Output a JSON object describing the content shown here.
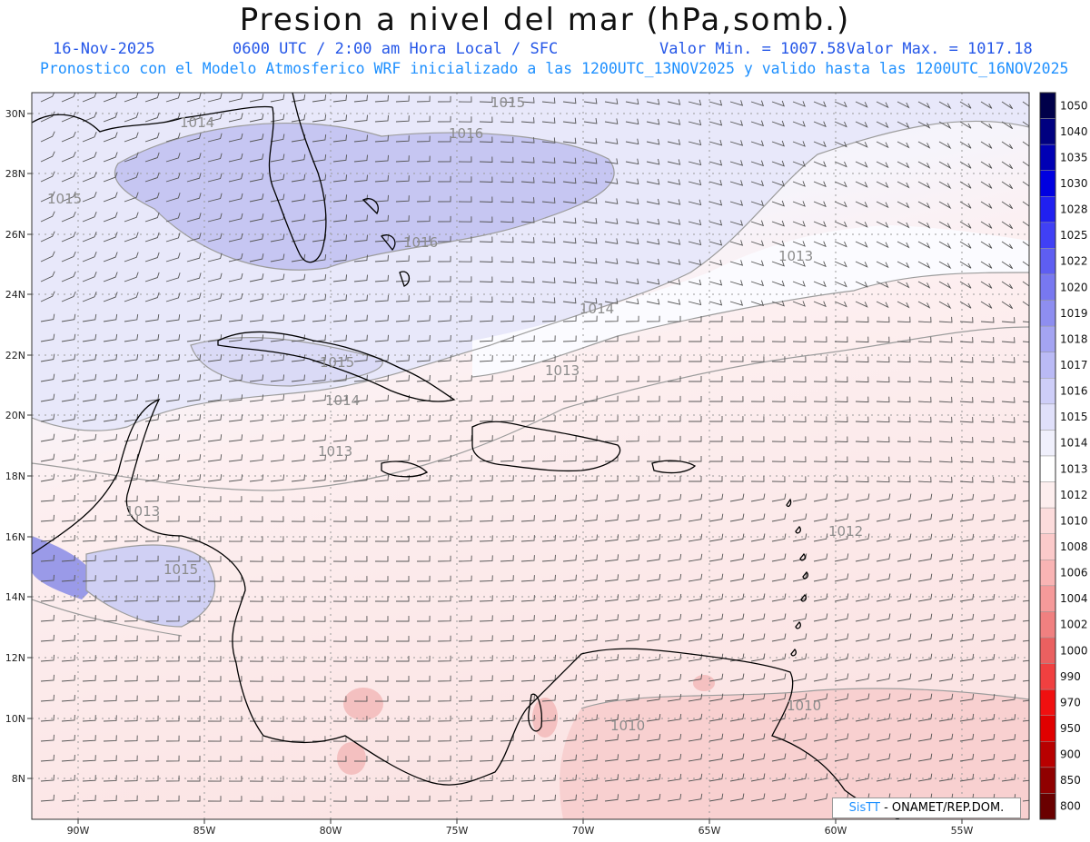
{
  "header": {
    "title": "Presion a nivel del mar (hPa,somb.)",
    "date": "16-Nov-2025",
    "time": "0600 UTC / 2:00 am Hora Local / SFC",
    "min": "Valor Min. = 1007.58",
    "max": "Valor Max. = 1017.18",
    "model_line": "Pronostico con el Modelo Atmosferico WRF inicializado a las 1200UTC_13NOV2025 y valido hasta las  1200UTC_16NOV2025"
  },
  "axes": {
    "lon_labels": [
      "90W",
      "85W",
      "80W",
      "75W",
      "70W",
      "65W",
      "60W",
      "55W"
    ],
    "lat_labels": [
      "30N",
      "28N",
      "26N",
      "24N",
      "22N",
      "20N",
      "18N",
      "16N",
      "14N",
      "12N",
      "10N",
      "8N"
    ]
  },
  "colorbar": {
    "labels": [
      "1050",
      "1040",
      "1035",
      "1030",
      "1028",
      "1025",
      "1022",
      "1020",
      "1019",
      "1018",
      "1017",
      "1016",
      "1015",
      "1014",
      "1013",
      "1012",
      "1010",
      "1008",
      "1006",
      "1004",
      "1002",
      "1000",
      "990",
      "970",
      "950",
      "900",
      "850",
      "800"
    ],
    "colors": [
      "#00004a",
      "#000080",
      "#0000b4",
      "#0000e0",
      "#2020f0",
      "#4040f5",
      "#5e5ef2",
      "#7878f0",
      "#8e8ef0",
      "#a4a4f2",
      "#babaf5",
      "#ceceF8",
      "#e0e0fa",
      "#f0f0fc",
      "#ffffff",
      "#fdeeee",
      "#fcdcdc",
      "#fbcaca",
      "#f9b4b4",
      "#f59a9a",
      "#f08080",
      "#ea6060",
      "#f04040",
      "#f01010",
      "#e00000",
      "#b80000",
      "#900000",
      "#6a0000"
    ]
  },
  "contour_labels": [
    {
      "text": "1015"
    },
    {
      "text": "1016"
    },
    {
      "text": "1015"
    },
    {
      "text": "1016"
    },
    {
      "text": "1013"
    },
    {
      "text": "1014"
    },
    {
      "text": "1013"
    },
    {
      "text": "1015"
    },
    {
      "text": "1014"
    },
    {
      "text": "1013"
    },
    {
      "text": "1013"
    },
    {
      "text": "1015"
    },
    {
      "text": "1012"
    },
    {
      "text": "1010"
    },
    {
      "text": "1010"
    },
    {
      "text": "1014"
    }
  ],
  "credit": {
    "brand": "SisTT",
    "org": "- ONAMET/REP.DOM."
  }
}
